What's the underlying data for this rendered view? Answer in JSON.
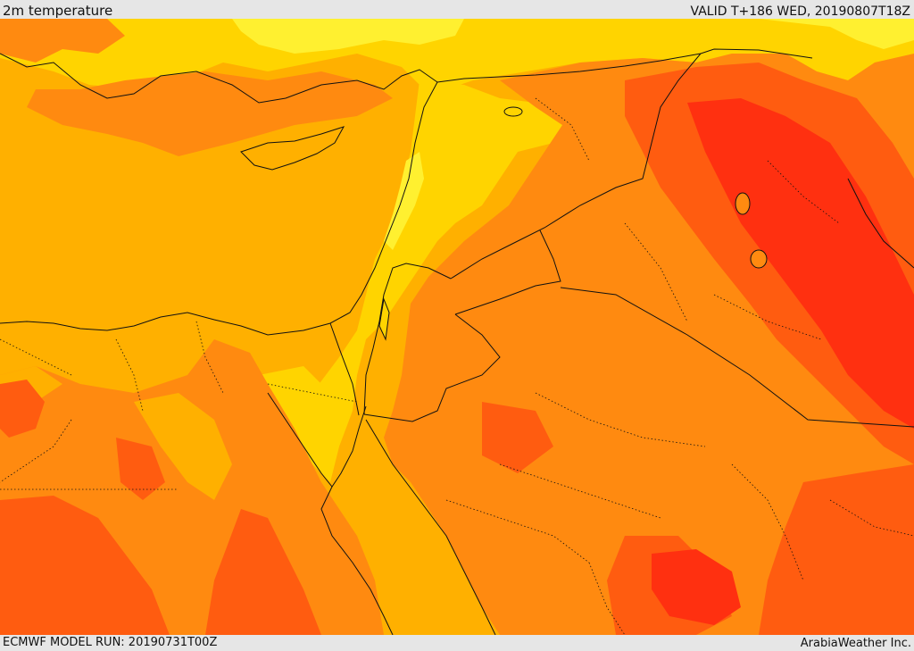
{
  "header": {
    "title": "2m temperature",
    "valid": "VALID T+186 WED, 20190807T18Z"
  },
  "footer": {
    "model_run": "ECMWF MODEL RUN: 20190731T00Z",
    "credit": "ArabiaWeather Inc."
  },
  "map": {
    "variable": "2m temperature",
    "colors": {
      "pale": "#fff030",
      "yellow": "#ffd400",
      "light_orange": "#ffb000",
      "orange": "#ff8a10",
      "deep_orange": "#ff5c10",
      "red": "#ff3010",
      "line": "#111111"
    }
  }
}
